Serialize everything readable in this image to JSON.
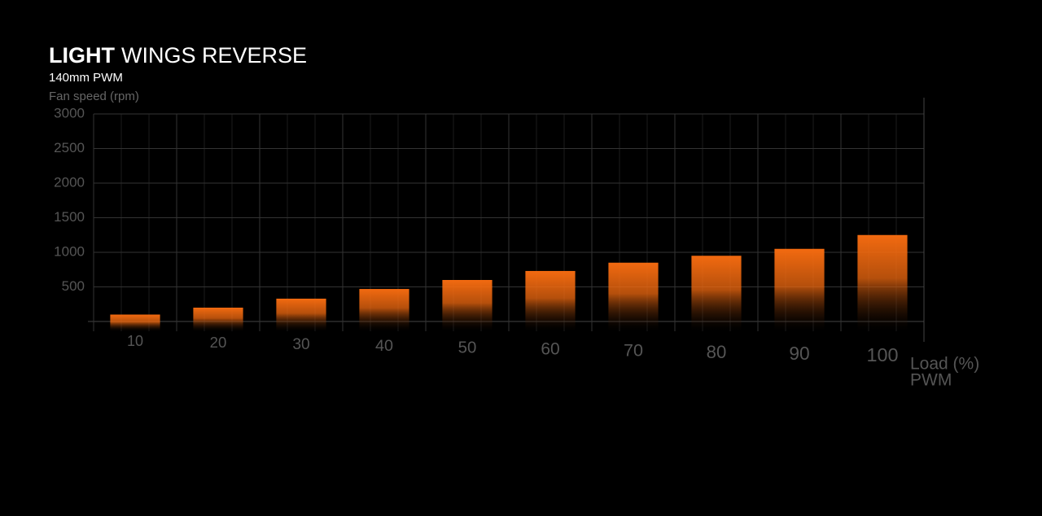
{
  "chart_data": {
    "type": "bar",
    "title_bold": "LIGHT",
    "title": "WINGS REVERSE",
    "subtitle": "140mm PWM",
    "y_label": "Fan speed (rpm)",
    "x_label": [
      "Load (%)",
      "PWM"
    ],
    "categories": [
      "10",
      "20",
      "30",
      "40",
      "50",
      "60",
      "70",
      "80",
      "90",
      "100"
    ],
    "values": [
      100,
      200,
      330,
      470,
      600,
      730,
      850,
      950,
      1050,
      1250
    ],
    "color": "#f26a10",
    "ylim": [
      0,
      3000
    ],
    "yticks": [
      500,
      1000,
      1500,
      2000,
      2500,
      3000
    ],
    "grid": true
  }
}
